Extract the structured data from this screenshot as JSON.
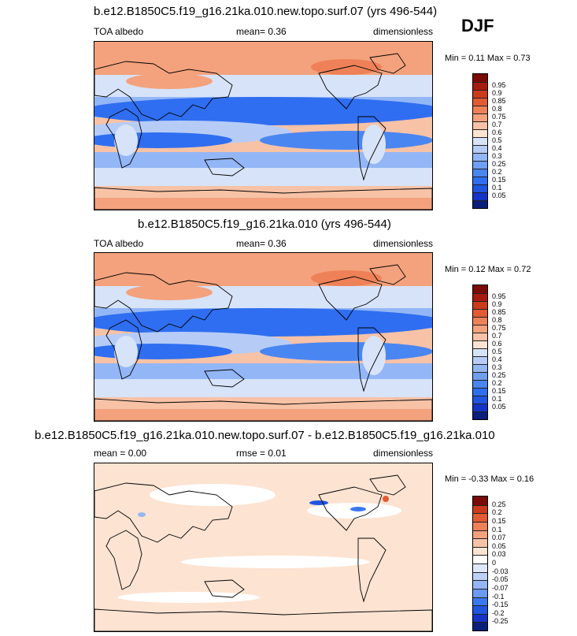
{
  "season": "DJF",
  "palette_abs": [
    "#0a1f7a",
    "#1533c8",
    "#1f55e0",
    "#2f6ef0",
    "#4a86f2",
    "#6f9ff4",
    "#93b6f6",
    "#b6ccf7",
    "#d7e3f8",
    "#fde3d2",
    "#f7c2a6",
    "#f3a27d",
    "#ee8158",
    "#e25b34",
    "#cc3a1c",
    "#a81b0f",
    "#7a0b07"
  ],
  "palette_diff": [
    "#0a1f7a",
    "#1533c8",
    "#1f55e0",
    "#3a78f0",
    "#6a9af4",
    "#93b6f6",
    "#bcd0f8",
    "#dfe8fa",
    "#ffffff",
    "#fde3d2",
    "#f7c2a6",
    "#f3a27d",
    "#ee8158",
    "#e25b34",
    "#cc3a1c",
    "#7a0b07"
  ],
  "panels": [
    {
      "title": "b.e12.B1850C5.f19_g16.21ka.010.new.topo.surf.07 (yrs 496-544)",
      "left_label": "TOA albedo",
      "center_label": "mean=   0.36",
      "right_label": "dimensionless",
      "minmax": "Min =   0.11 Max =   0.73",
      "levels": [
        "0.95",
        "0.9",
        "0.85",
        "0.8",
        "0.75",
        "0.7",
        "0.6",
        "0.5",
        "0.4",
        "0.3",
        "0.25",
        "0.2",
        "0.15",
        "0.1",
        "0.05"
      ]
    },
    {
      "title": "b.e12.B1850C5.f19_g16.21ka.010 (yrs 496-544)",
      "left_label": "TOA albedo",
      "center_label": "mean=   0.36",
      "right_label": "dimensionless",
      "minmax": "Min =   0.12 Max =   0.72",
      "levels": [
        "0.95",
        "0.9",
        "0.85",
        "0.8",
        "0.75",
        "0.7",
        "0.6",
        "0.5",
        "0.4",
        "0.3",
        "0.25",
        "0.2",
        "0.15",
        "0.1",
        "0.05"
      ]
    },
    {
      "title": "b.e12.B1850C5.f19_g16.21ka.010.new.topo.surf.07 - b.e12.B1850C5.f19_g16.21ka.010",
      "left_label": "mean =   0.00",
      "center_label": "rmse =   0.01",
      "right_label": "dimensionless",
      "minmax": "Min =  -0.33 Max =   0.16",
      "levels": [
        "0.25",
        "0.2",
        "0.15",
        "0.1",
        "0.07",
        "0.05",
        "0.03",
        "0",
        "-0.03",
        "-0.05",
        "-0.07",
        "-0.1",
        "-0.15",
        "-0.2",
        "-0.25"
      ]
    }
  ],
  "chart_data": [
    {
      "type": "heatmap",
      "title": "b.e12.B1850C5.f19_g16.21ka.010.new.topo.surf.07 (yrs 496-544)",
      "variable": "TOA albedo",
      "units": "dimensionless",
      "mean": 0.36,
      "min": 0.11,
      "max": 0.73,
      "season": "DJF",
      "contour_levels": [
        0.05,
        0.1,
        0.15,
        0.2,
        0.25,
        0.3,
        0.4,
        0.5,
        0.6,
        0.7,
        0.75,
        0.8,
        0.85,
        0.9,
        0.95
      ]
    },
    {
      "type": "heatmap",
      "title": "b.e12.B1850C5.f19_g16.21ka.010 (yrs 496-544)",
      "variable": "TOA albedo",
      "units": "dimensionless",
      "mean": 0.36,
      "min": 0.12,
      "max": 0.72,
      "season": "DJF",
      "contour_levels": [
        0.05,
        0.1,
        0.15,
        0.2,
        0.25,
        0.3,
        0.4,
        0.5,
        0.6,
        0.7,
        0.75,
        0.8,
        0.85,
        0.9,
        0.95
      ]
    },
    {
      "type": "heatmap",
      "title": "b.e12.B1850C5.f19_g16.21ka.010.new.topo.surf.07 - b.e12.B1850C5.f19_g16.21ka.010",
      "units": "dimensionless",
      "mean": 0.0,
      "rmse": 0.01,
      "min": -0.33,
      "max": 0.16,
      "season": "DJF",
      "contour_levels": [
        -0.25,
        -0.2,
        -0.15,
        -0.1,
        -0.07,
        -0.05,
        -0.03,
        0,
        0.03,
        0.05,
        0.07,
        0.1,
        0.15,
        0.2,
        0.25
      ]
    }
  ]
}
